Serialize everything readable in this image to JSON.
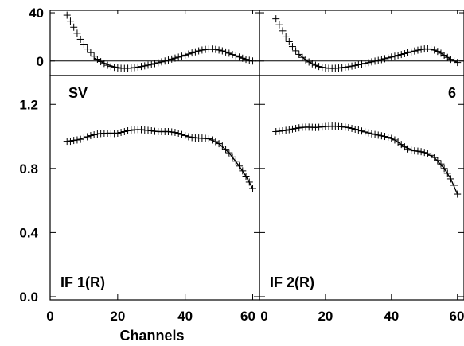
{
  "chart_data": {
    "type": "scatter",
    "xlabel": "Channels",
    "x_ticks": [
      "0",
      "20",
      "40",
      "60"
    ],
    "x_ticks_right": [
      "0",
      "20",
      "40",
      "60"
    ],
    "top_y_ticks": [
      "40",
      "0"
    ],
    "bottom_y_ticks": [
      "1.2",
      "0.8",
      "0.4",
      "0.0"
    ],
    "top_ylim": [
      -12,
      42
    ],
    "bottom_ylim": [
      -0.02,
      1.38
    ],
    "xlim": [
      0,
      62
    ],
    "line_color": "#000000",
    "panels": [
      {
        "label_top": "SV",
        "label_bottom": "IF 1(R)",
        "phase": [
          [
            5,
            38
          ],
          [
            6,
            33
          ],
          [
            7,
            28
          ],
          [
            8,
            23
          ],
          [
            9,
            18
          ],
          [
            10,
            14
          ],
          [
            11,
            10
          ],
          [
            12,
            7
          ],
          [
            13,
            4
          ],
          [
            14,
            1.5
          ],
          [
            15,
            -0.5
          ],
          [
            16,
            -2
          ],
          [
            17,
            -3.5
          ],
          [
            18,
            -4.5
          ],
          [
            19,
            -5.2
          ],
          [
            20,
            -5.7
          ],
          [
            21,
            -6
          ],
          [
            22,
            -6.1
          ],
          [
            23,
            -6
          ],
          [
            24,
            -5.8
          ],
          [
            25,
            -5.4
          ],
          [
            26,
            -5
          ],
          [
            27,
            -4.5
          ],
          [
            28,
            -4
          ],
          [
            29,
            -3.4
          ],
          [
            30,
            -2.8
          ],
          [
            31,
            -2.1
          ],
          [
            32,
            -1.4
          ],
          [
            33,
            -0.7
          ],
          [
            34,
            0
          ],
          [
            35,
            0.8
          ],
          [
            36,
            1.6
          ],
          [
            37,
            2.4
          ],
          [
            38,
            3.2
          ],
          [
            39,
            4
          ],
          [
            40,
            4.9
          ],
          [
            41,
            5.8
          ],
          [
            42,
            6.7
          ],
          [
            43,
            7.6
          ],
          [
            44,
            8.4
          ],
          [
            45,
            9.1
          ],
          [
            46,
            9.6
          ],
          [
            47,
            9.9
          ],
          [
            48,
            9.9
          ],
          [
            49,
            9.6
          ],
          [
            50,
            9.1
          ],
          [
            51,
            8.4
          ],
          [
            52,
            7.5
          ],
          [
            53,
            6.5
          ],
          [
            54,
            5.4
          ],
          [
            55,
            4.3
          ],
          [
            56,
            3.3
          ],
          [
            57,
            2.3
          ],
          [
            58,
            1.4
          ],
          [
            59,
            0.6
          ],
          [
            60,
            0
          ]
        ],
        "phase_fit": [
          [
            13,
            2.5
          ],
          [
            15,
            -0.5
          ],
          [
            17,
            -3
          ],
          [
            19,
            -4.8
          ],
          [
            21,
            -5.8
          ],
          [
            23,
            -6
          ],
          [
            25,
            -5.5
          ],
          [
            27,
            -4.6
          ],
          [
            29,
            -3.5
          ],
          [
            31,
            -2.2
          ],
          [
            33,
            -0.8
          ],
          [
            35,
            0.7
          ],
          [
            37,
            2.3
          ],
          [
            39,
            3.9
          ],
          [
            41,
            5.7
          ],
          [
            43,
            7.5
          ],
          [
            45,
            9
          ],
          [
            47,
            9.8
          ],
          [
            49,
            9.6
          ],
          [
            51,
            8.4
          ],
          [
            53,
            6.5
          ],
          [
            55,
            4.3
          ],
          [
            57,
            2.3
          ],
          [
            59,
            0.6
          ],
          [
            60,
            0
          ]
        ],
        "amplitude": [
          [
            5,
            0.97
          ],
          [
            6,
            0.97
          ],
          [
            7,
            0.975
          ],
          [
            8,
            0.978
          ],
          [
            9,
            0.982
          ],
          [
            10,
            0.99
          ],
          [
            11,
            0.998
          ],
          [
            12,
            1.005
          ],
          [
            13,
            1.01
          ],
          [
            14,
            1.015
          ],
          [
            15,
            1.018
          ],
          [
            16,
            1.02
          ],
          [
            17,
            1.02
          ],
          [
            18,
            1.019
          ],
          [
            19,
            1.018
          ],
          [
            20,
            1.02
          ],
          [
            21,
            1.025
          ],
          [
            22,
            1.03
          ],
          [
            23,
            1.035
          ],
          [
            24,
            1.04
          ],
          [
            25,
            1.042
          ],
          [
            26,
            1.043
          ],
          [
            27,
            1.042
          ],
          [
            28,
            1.04
          ],
          [
            29,
            1.038
          ],
          [
            30,
            1.035
          ],
          [
            31,
            1.032
          ],
          [
            32,
            1.03
          ],
          [
            33,
            1.03
          ],
          [
            34,
            1.03
          ],
          [
            35,
            1.03
          ],
          [
            36,
            1.028
          ],
          [
            37,
            1.025
          ],
          [
            38,
            1.02
          ],
          [
            39,
            1.012
          ],
          [
            40,
            1.005
          ],
          [
            41,
            0.998
          ],
          [
            42,
            0.993
          ],
          [
            43,
            0.99
          ],
          [
            44,
            0.99
          ],
          [
            45,
            0.99
          ],
          [
            46,
            0.988
          ],
          [
            47,
            0.985
          ],
          [
            48,
            0.978
          ],
          [
            49,
            0.968
          ],
          [
            50,
            0.955
          ],
          [
            51,
            0.94
          ],
          [
            52,
            0.92
          ],
          [
            53,
            0.898
          ],
          [
            54,
            0.872
          ],
          [
            55,
            0.845
          ],
          [
            56,
            0.815
          ],
          [
            57,
            0.785
          ],
          [
            58,
            0.752
          ],
          [
            59,
            0.715
          ],
          [
            60,
            0.675
          ]
        ],
        "amplitude_fit": [
          [
            5,
            0.97
          ],
          [
            8,
            0.978
          ],
          [
            11,
            0.998
          ],
          [
            14,
            1.015
          ],
          [
            17,
            1.02
          ],
          [
            20,
            1.02
          ],
          [
            23,
            1.035
          ],
          [
            26,
            1.043
          ],
          [
            29,
            1.038
          ],
          [
            32,
            1.03
          ],
          [
            35,
            1.03
          ],
          [
            38,
            1.02
          ],
          [
            41,
            0.998
          ],
          [
            44,
            0.99
          ],
          [
            47,
            0.985
          ],
          [
            50,
            0.955
          ],
          [
            53,
            0.898
          ],
          [
            56,
            0.815
          ],
          [
            58,
            0.752
          ],
          [
            60,
            0.675
          ]
        ]
      },
      {
        "label_top": "6",
        "label_bottom": "IF 2(R)",
        "phase": [
          [
            5,
            35
          ],
          [
            6,
            30
          ],
          [
            7,
            25
          ],
          [
            8,
            20
          ],
          [
            9,
            16
          ],
          [
            10,
            12
          ],
          [
            11,
            8.5
          ],
          [
            12,
            5.5
          ],
          [
            13,
            3
          ],
          [
            14,
            1
          ],
          [
            15,
            -0.8
          ],
          [
            16,
            -2.3
          ],
          [
            17,
            -3.5
          ],
          [
            18,
            -4.5
          ],
          [
            19,
            -5.2
          ],
          [
            20,
            -5.7
          ],
          [
            21,
            -6
          ],
          [
            22,
            -6.1
          ],
          [
            23,
            -6
          ],
          [
            24,
            -5.8
          ],
          [
            25,
            -5.5
          ],
          [
            26,
            -5.1
          ],
          [
            27,
            -4.7
          ],
          [
            28,
            -4.2
          ],
          [
            29,
            -3.7
          ],
          [
            30,
            -3.1
          ],
          [
            31,
            -2.5
          ],
          [
            32,
            -1.9
          ],
          [
            33,
            -1.3
          ],
          [
            34,
            -0.7
          ],
          [
            35,
            -0.1
          ],
          [
            36,
            0.5
          ],
          [
            37,
            1.2
          ],
          [
            38,
            1.9
          ],
          [
            39,
            2.6
          ],
          [
            40,
            3.3
          ],
          [
            41,
            4
          ],
          [
            42,
            4.7
          ],
          [
            43,
            5.4
          ],
          [
            44,
            6.1
          ],
          [
            45,
            6.9
          ],
          [
            46,
            7.6
          ],
          [
            47,
            8.3
          ],
          [
            48,
            9
          ],
          [
            49,
            9.6
          ],
          [
            50,
            10
          ],
          [
            51,
            10.1
          ],
          [
            52,
            9.8
          ],
          [
            53,
            9.1
          ],
          [
            54,
            8
          ],
          [
            55,
            6.5
          ],
          [
            56,
            4.8
          ],
          [
            57,
            3
          ],
          [
            58,
            1.4
          ],
          [
            59,
            0
          ],
          [
            60,
            -1.2
          ]
        ],
        "phase_fit": [
          [
            12,
            5.5
          ],
          [
            14,
            1
          ],
          [
            16,
            -2.3
          ],
          [
            18,
            -4.5
          ],
          [
            20,
            -5.7
          ],
          [
            22,
            -6.1
          ],
          [
            24,
            -5.8
          ],
          [
            26,
            -5.1
          ],
          [
            28,
            -4.2
          ],
          [
            30,
            -3.1
          ],
          [
            32,
            -1.9
          ],
          [
            34,
            -0.7
          ],
          [
            36,
            0.5
          ],
          [
            38,
            1.9
          ],
          [
            40,
            3.3
          ],
          [
            42,
            4.7
          ],
          [
            44,
            6.1
          ],
          [
            46,
            7.6
          ],
          [
            48,
            9
          ],
          [
            50,
            10
          ],
          [
            52,
            9.8
          ],
          [
            54,
            8
          ],
          [
            56,
            4.8
          ],
          [
            58,
            1.4
          ],
          [
            60,
            -1.2
          ]
        ],
        "amplitude": [
          [
            5,
            1.03
          ],
          [
            6,
            1.032
          ],
          [
            7,
            1.035
          ],
          [
            8,
            1.038
          ],
          [
            9,
            1.042
          ],
          [
            10,
            1.046
          ],
          [
            11,
            1.05
          ],
          [
            12,
            1.054
          ],
          [
            13,
            1.057
          ],
          [
            14,
            1.058
          ],
          [
            15,
            1.058
          ],
          [
            16,
            1.057
          ],
          [
            17,
            1.056
          ],
          [
            18,
            1.057
          ],
          [
            19,
            1.059
          ],
          [
            20,
            1.062
          ],
          [
            21,
            1.064
          ],
          [
            22,
            1.065
          ],
          [
            23,
            1.064
          ],
          [
            24,
            1.062
          ],
          [
            25,
            1.06
          ],
          [
            26,
            1.058
          ],
          [
            27,
            1.055
          ],
          [
            28,
            1.05
          ],
          [
            29,
            1.045
          ],
          [
            30,
            1.04
          ],
          [
            31,
            1.034
          ],
          [
            32,
            1.028
          ],
          [
            33,
            1.022
          ],
          [
            34,
            1.016
          ],
          [
            35,
            1.012
          ],
          [
            36,
            1.008
          ],
          [
            37,
            1.004
          ],
          [
            38,
            1
          ],
          [
            39,
            0.995
          ],
          [
            40,
            0.988
          ],
          [
            41,
            0.978
          ],
          [
            42,
            0.965
          ],
          [
            43,
            0.95
          ],
          [
            44,
            0.935
          ],
          [
            45,
            0.922
          ],
          [
            46,
            0.914
          ],
          [
            47,
            0.91
          ],
          [
            48,
            0.908
          ],
          [
            49,
            0.905
          ],
          [
            50,
            0.9
          ],
          [
            51,
            0.893
          ],
          [
            52,
            0.882
          ],
          [
            53,
            0.868
          ],
          [
            54,
            0.85
          ],
          [
            55,
            0.828
          ],
          [
            56,
            0.8
          ],
          [
            57,
            0.77
          ],
          [
            58,
            0.735
          ],
          [
            59,
            0.695
          ],
          [
            60,
            0.64
          ]
        ],
        "amplitude_fit": [
          [
            5,
            1.03
          ],
          [
            8,
            1.038
          ],
          [
            11,
            1.05
          ],
          [
            14,
            1.058
          ],
          [
            17,
            1.056
          ],
          [
            20,
            1.062
          ],
          [
            23,
            1.064
          ],
          [
            26,
            1.058
          ],
          [
            29,
            1.045
          ],
          [
            32,
            1.028
          ],
          [
            35,
            1.012
          ],
          [
            38,
            1
          ],
          [
            41,
            0.978
          ],
          [
            44,
            0.935
          ],
          [
            47,
            0.91
          ],
          [
            50,
            0.9
          ],
          [
            53,
            0.868
          ],
          [
            56,
            0.8
          ],
          [
            58,
            0.735
          ],
          [
            60,
            0.64
          ]
        ]
      }
    ]
  }
}
